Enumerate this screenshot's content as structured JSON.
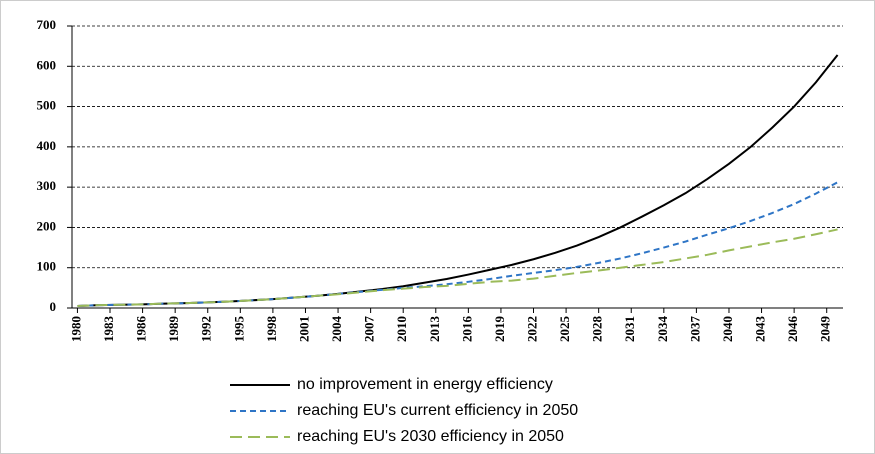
{
  "chart_data": {
    "type": "line",
    "x": [
      1980,
      1982,
      1984,
      1986,
      1988,
      1990,
      1992,
      1994,
      1996,
      1998,
      2000,
      2002,
      2004,
      2006,
      2008,
      2010,
      2012,
      2014,
      2016,
      2018,
      2020,
      2022,
      2024,
      2026,
      2028,
      2030,
      2032,
      2034,
      2036,
      2038,
      2040,
      2042,
      2044,
      2046,
      2048,
      2050
    ],
    "series": [
      {
        "name": "no improvement in energy efficiency",
        "color": "#000000",
        "dash": "solid",
        "values": [
          5,
          7,
          8,
          9,
          11,
          12,
          14,
          16,
          19,
          22,
          26,
          30,
          35,
          41,
          47,
          54,
          63,
          72,
          83,
          95,
          107,
          121,
          137,
          155,
          176,
          200,
          227,
          255,
          285,
          320,
          358,
          400,
          448,
          500,
          560,
          628
        ]
      },
      {
        "name": "reaching EU's current efficiency in 2050",
        "color": "#2e75c6",
        "dash": "short",
        "values": [
          5,
          7,
          8,
          9,
          11,
          12,
          14,
          16,
          19,
          22,
          26,
          30,
          35,
          40,
          45,
          50,
          54,
          59,
          65,
          72,
          80,
          87,
          94,
          102,
          112,
          123,
          136,
          150,
          165,
          182,
          198,
          216,
          236,
          258,
          284,
          312
        ]
      },
      {
        "name": "reaching EU's 2030 efficiency in 2050",
        "color": "#9bbb59",
        "dash": "long",
        "values": [
          5,
          7,
          8,
          9,
          11,
          12,
          14,
          16,
          19,
          22,
          26,
          30,
          34,
          39,
          44,
          48,
          52,
          55,
          60,
          65,
          68,
          73,
          80,
          87,
          93,
          100,
          107,
          114,
          123,
          132,
          143,
          153,
          163,
          172,
          183,
          195
        ]
      }
    ],
    "xlim": [
      1979.5,
      2050.5
    ],
    "xticks": [
      1980,
      1983,
      1986,
      1989,
      1992,
      1995,
      1998,
      2001,
      2004,
      2007,
      2010,
      2013,
      2016,
      2019,
      2022,
      2025,
      2028,
      2031,
      2034,
      2037,
      2040,
      2043,
      2046,
      2049
    ],
    "ylim": [
      0,
      700
    ],
    "yticks": [
      0,
      100,
      200,
      300,
      400,
      500,
      600,
      700
    ],
    "grid": true,
    "legend": "bottom"
  }
}
